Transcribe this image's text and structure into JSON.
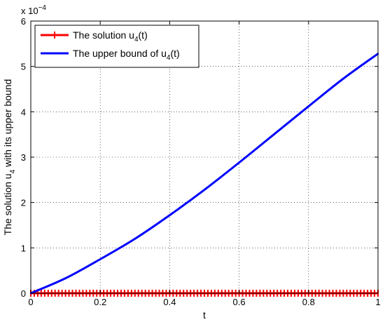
{
  "chart_data": {
    "type": "line",
    "xlabel": "t",
    "ylabel": "The solution u",
    "ylabel_sub": "4",
    "ylabel_suffix": " with its upper bound",
    "exponent_label": "x 10",
    "exponent_power": "−4",
    "xlim": [
      0,
      1
    ],
    "ylim": [
      0,
      6
    ],
    "y_scale_factor": 0.0001,
    "grid": true,
    "legend_position": "top-left",
    "x_ticks": [
      0,
      0.2,
      0.4,
      0.6,
      0.8,
      1
    ],
    "x_tick_labels": [
      "0",
      "0.2",
      "0.4",
      "0.6",
      "0.8",
      "1"
    ],
    "y_ticks": [
      0,
      1,
      2,
      3,
      4,
      5,
      6
    ],
    "y_tick_labels": [
      "0",
      "1",
      "2",
      "3",
      "4",
      "5",
      "6"
    ],
    "series": [
      {
        "name": "The solution u4(t)",
        "legend_main": "The solution u",
        "legend_sub": "4",
        "legend_tail": "(t)",
        "color": "#ff0000",
        "marker": "plus",
        "x": [
          0,
          0.1,
          0.2,
          0.3,
          0.4,
          0.5,
          0.6,
          0.7,
          0.8,
          0.9,
          1.0
        ],
        "y": [
          0,
          0,
          0,
          0,
          0,
          0,
          0,
          0,
          0,
          0,
          0
        ]
      },
      {
        "name": "The upper bound of u4(t)",
        "legend_main": "The upper bound of u",
        "legend_sub": "4",
        "legend_tail": "(t)",
        "color": "#0000ff",
        "marker": "none",
        "x": [
          0,
          0.1,
          0.2,
          0.3,
          0.4,
          0.5,
          0.6,
          0.7,
          0.8,
          0.9,
          1.0
        ],
        "y": [
          0,
          0.33,
          0.75,
          1.2,
          1.72,
          2.28,
          2.88,
          3.5,
          4.12,
          4.73,
          5.28
        ]
      }
    ]
  }
}
